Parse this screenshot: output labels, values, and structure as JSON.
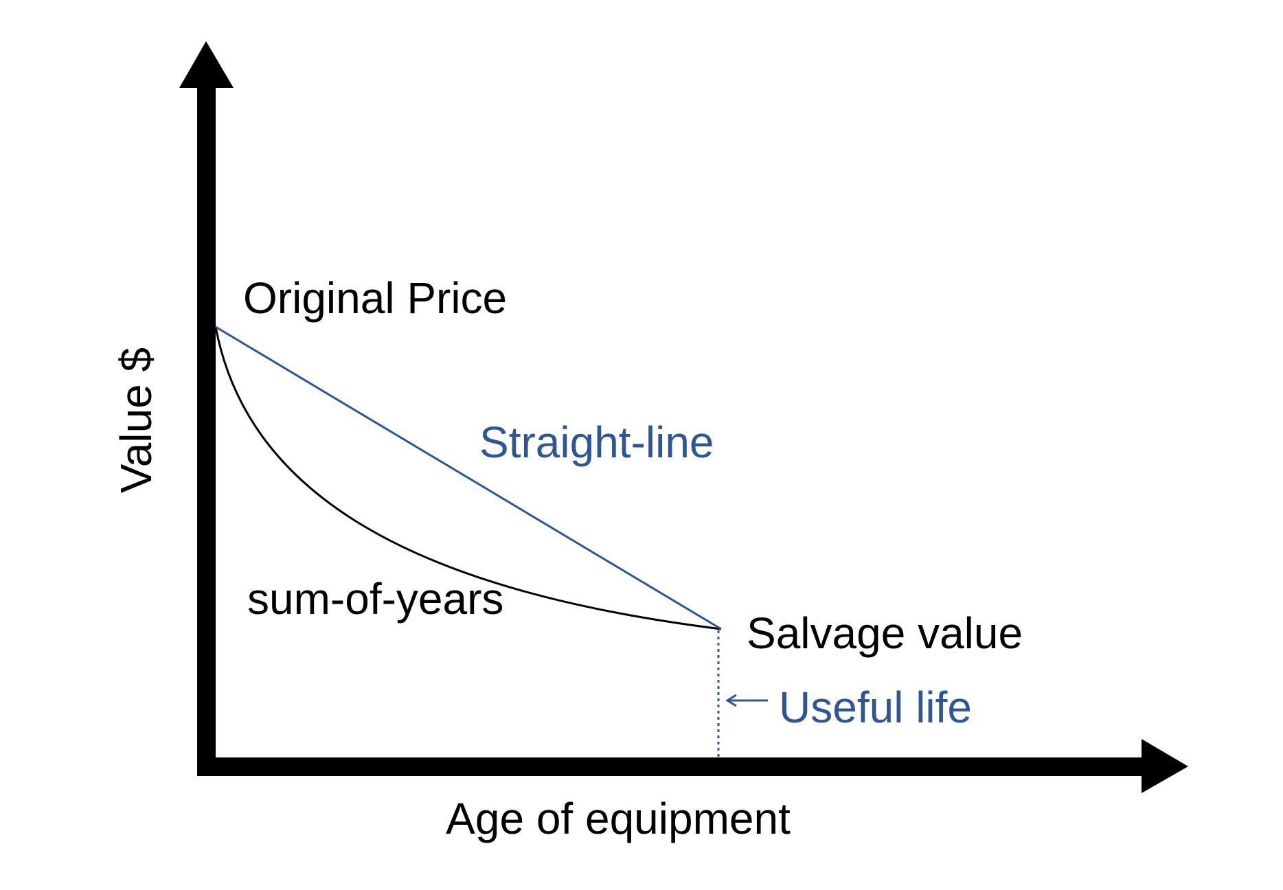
{
  "y_axis_label": "Value $",
  "x_axis_label": "Age of equipment",
  "original_price": "Original Price",
  "straight_line": "Straight-line",
  "sum_of_years": "sum-of-years",
  "salvage_value": "Salvage value",
  "useful_life": "Useful life"
}
